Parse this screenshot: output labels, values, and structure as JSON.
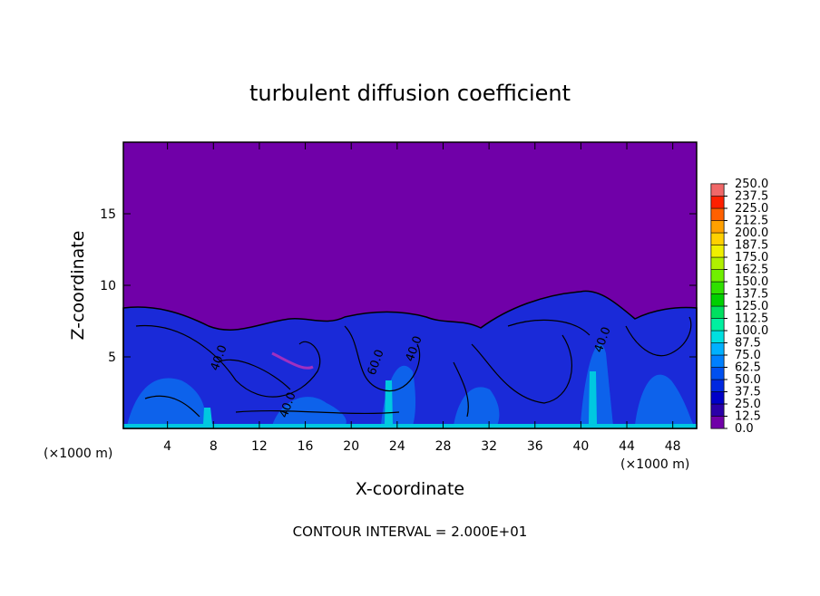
{
  "chart_data": {
    "type": "contour",
    "title": "turbulent diffusion coefficient",
    "x_label": "X-coordinate",
    "y_label": "Z-coordinate",
    "x_unit": "(×1000 m)",
    "footer": "CONTOUR INTERVAL = 2.000E+01",
    "contour_labels": [
      "40.0",
      "40.0",
      "60.0",
      "40.0",
      "40.0"
    ],
    "xlim": [
      0,
      50
    ],
    "ylim": [
      0,
      20
    ],
    "xticks": [
      4,
      8,
      12,
      16,
      20,
      24,
      28,
      32,
      36,
      40,
      44,
      48
    ],
    "yticks": [
      5,
      10,
      15
    ],
    "colorbar": {
      "levels": [
        {
          "value": 0,
          "label": "0.0"
        },
        {
          "value": 12.5,
          "label": "12.5"
        },
        {
          "value": 25,
          "label": "25.0"
        },
        {
          "value": 37.5,
          "label": "37.5"
        },
        {
          "value": 50,
          "label": "50.0"
        },
        {
          "value": 62.5,
          "label": "62.5"
        },
        {
          "value": 75,
          "label": "75.0"
        },
        {
          "value": 87.5,
          "label": "87.5"
        },
        {
          "value": 100,
          "label": "100.0"
        },
        {
          "value": 112.5,
          "label": "112.5"
        },
        {
          "value": 125,
          "label": "125.0"
        },
        {
          "value": 137.5,
          "label": "137.5"
        },
        {
          "value": 150,
          "label": "150.0"
        },
        {
          "value": 162.5,
          "label": "162.5"
        },
        {
          "value": 175,
          "label": "175.0"
        },
        {
          "value": 187.5,
          "label": "187.5"
        },
        {
          "value": 200,
          "label": "200.0"
        },
        {
          "value": 212.5,
          "label": "212.5"
        },
        {
          "value": 225,
          "label": "225.0"
        },
        {
          "value": 237.5,
          "label": "237.5"
        },
        {
          "value": 250,
          "label": "250.0"
        }
      ],
      "colors": [
        "#7000a8",
        "#2a00a8",
        "#0000c8",
        "#0028e0",
        "#0050f0",
        "#0080ff",
        "#00b0ff",
        "#00e0e0",
        "#00f0a0",
        "#00e060",
        "#00d000",
        "#30e000",
        "#70f000",
        "#b0f000",
        "#f0f000",
        "#ffd000",
        "#ffa000",
        "#ff6000",
        "#ff2000",
        "#f06868"
      ]
    }
  }
}
